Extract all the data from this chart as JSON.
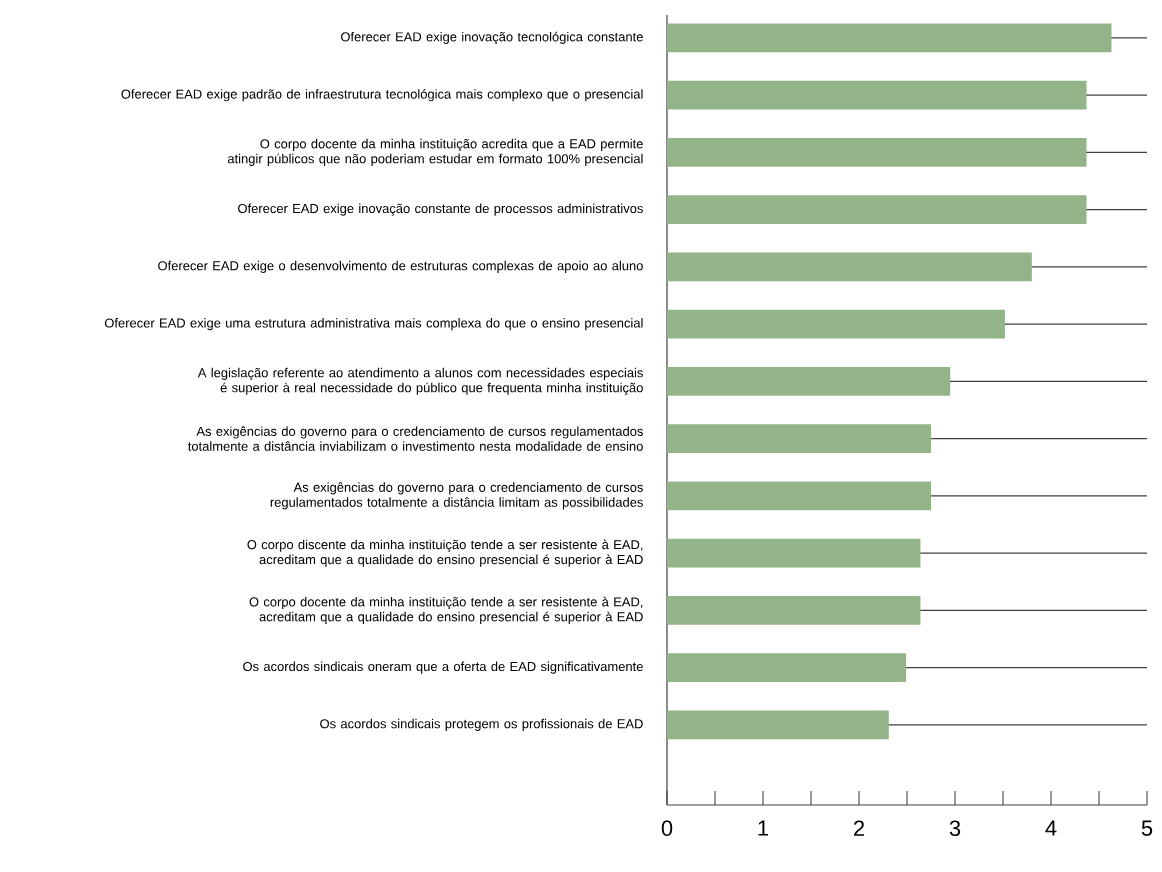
{
  "chart_data": {
    "type": "bar",
    "orientation": "horizontal",
    "color": "#93b388",
    "grid": "y",
    "categories": [
      "Oferecer EAD exige inovação tecnológica constante",
      "Oferecer EAD exige padrão de infraestrutura tecnológica mais complexo que o presencial",
      "O corpo docente da minha instituição acredita que a EAD permite atingir públicos que não poderiam estudar em formato 100% presencial",
      "Oferecer EAD exige inovação constante de processos administrativos",
      "Oferecer EAD exige o desenvolvimento de estruturas complexas de apoio ao aluno",
      "Oferecer EAD exige uma estrutura administrativa mais complexa do que o ensino presencial",
      "A legislação referente ao atendimento a alunos com necessidades especiais é superior à real necessidade do público que frequenta minha instituição",
      "As exigências do governo para o credenciamento de cursos regulamentados totalmente a distância inviabilizam o investimento nesta modalidade de ensino",
      "As exigências do governo para o credenciamento de cursos regulamentados totalmente a distância limitam as possibilidades",
      "O corpo discente da minha instituição tende a ser resistente à EAD, acreditam que a qualidade do ensino presencial é superior à EAD",
      "O corpo docente da minha instituição tende a ser resistente à EAD, acreditam que a qualidade do ensino presencial é superior à EAD",
      "Os acordos sindicais oneram que a oferta de EAD significativamente",
      "Os acordos sindicais protegem os profissionais de EAD"
    ],
    "values": [
      4.63,
      4.37,
      4.37,
      4.37,
      3.8,
      3.52,
      2.95,
      2.75,
      2.75,
      2.64,
      2.64,
      2.49,
      2.31
    ],
    "xlim": [
      0,
      5
    ],
    "xticks": [
      0,
      {
        "value": 0.5,
        "label": null
      },
      1,
      {
        "value": 1.5,
        "label": null
      },
      2,
      {
        "value": 2.5,
        "label": null
      },
      3,
      {
        "value": 3.5,
        "label": null
      },
      4,
      {
        "value": 4.5,
        "label": null
      },
      5
    ]
  }
}
